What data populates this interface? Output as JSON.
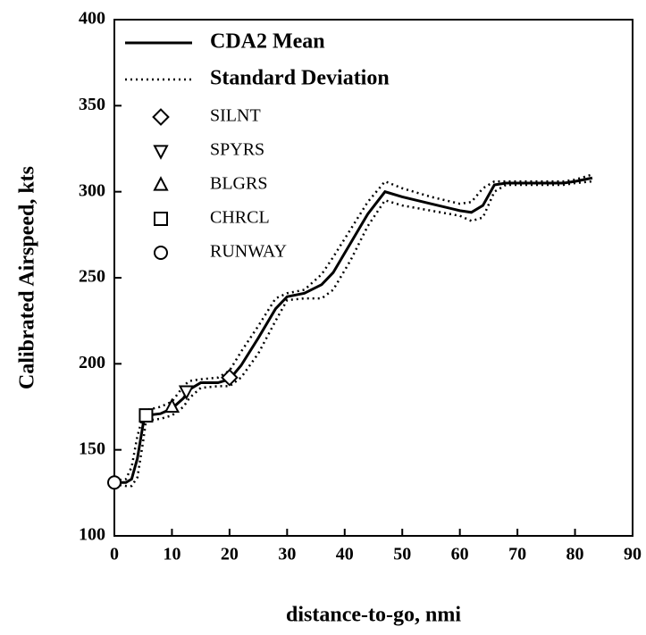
{
  "chart_data": {
    "type": "line",
    "xlabel": "distance-to-go, nmi",
    "ylabel": "Calibrated Airspeed, kts",
    "xlim": [
      0,
      90
    ],
    "xticks": [
      0,
      10,
      20,
      30,
      40,
      50,
      60,
      70,
      80,
      90
    ],
    "ylim": [
      100,
      400
    ],
    "yticks": [
      100,
      150,
      200,
      250,
      300,
      350,
      400
    ],
    "x": [
      0,
      2,
      3,
      4,
      5,
      5.5,
      8,
      10,
      12,
      13,
      15,
      18,
      20,
      22,
      25,
      28,
      30,
      33,
      36,
      38,
      41,
      44,
      47,
      50,
      55,
      60,
      62,
      64,
      66,
      68,
      75,
      78,
      80,
      83
    ],
    "series": [
      {
        "name": "CDA2 Mean",
        "color": "#000000",
        "values": [
          131,
          131,
          133,
          145,
          165,
          170,
          171,
          174,
          180,
          185,
          189,
          189,
          191,
          199,
          215,
          232,
          239,
          241,
          246,
          253,
          270,
          287,
          300,
          297,
          293,
          289,
          288,
          292,
          304,
          305,
          305,
          305,
          306,
          308
        ]
      }
    ],
    "deviation": {
      "name": "Standard Deviation",
      "color": "#000000",
      "upper": [
        132,
        133,
        140,
        158,
        170,
        173,
        175,
        178,
        187,
        190,
        191,
        192,
        196,
        207,
        222,
        238,
        241,
        243,
        252,
        262,
        278,
        294,
        306,
        302,
        297,
        293,
        294,
        302,
        306,
        306,
        306,
        306,
        307,
        310
      ],
      "lower": [
        130,
        129,
        129,
        134,
        155,
        167,
        168,
        170,
        175,
        180,
        186,
        187,
        187,
        192,
        206,
        225,
        237,
        238,
        238,
        243,
        260,
        280,
        295,
        292,
        289,
        286,
        283,
        285,
        300,
        304,
        304,
        304,
        305,
        306
      ]
    },
    "markers": [
      {
        "name": "SILNT",
        "shape": "diamond",
        "x": 20,
        "y": 192
      },
      {
        "name": "SPYRS",
        "shape": "triangle-down",
        "x": 12.5,
        "y": 184
      },
      {
        "name": "BLGRS",
        "shape": "triangle-up",
        "x": 10,
        "y": 175
      },
      {
        "name": "CHRCL",
        "shape": "square",
        "x": 5.5,
        "y": 170
      },
      {
        "name": "RUNWAY",
        "shape": "circle",
        "x": 0,
        "y": 131
      }
    ]
  }
}
